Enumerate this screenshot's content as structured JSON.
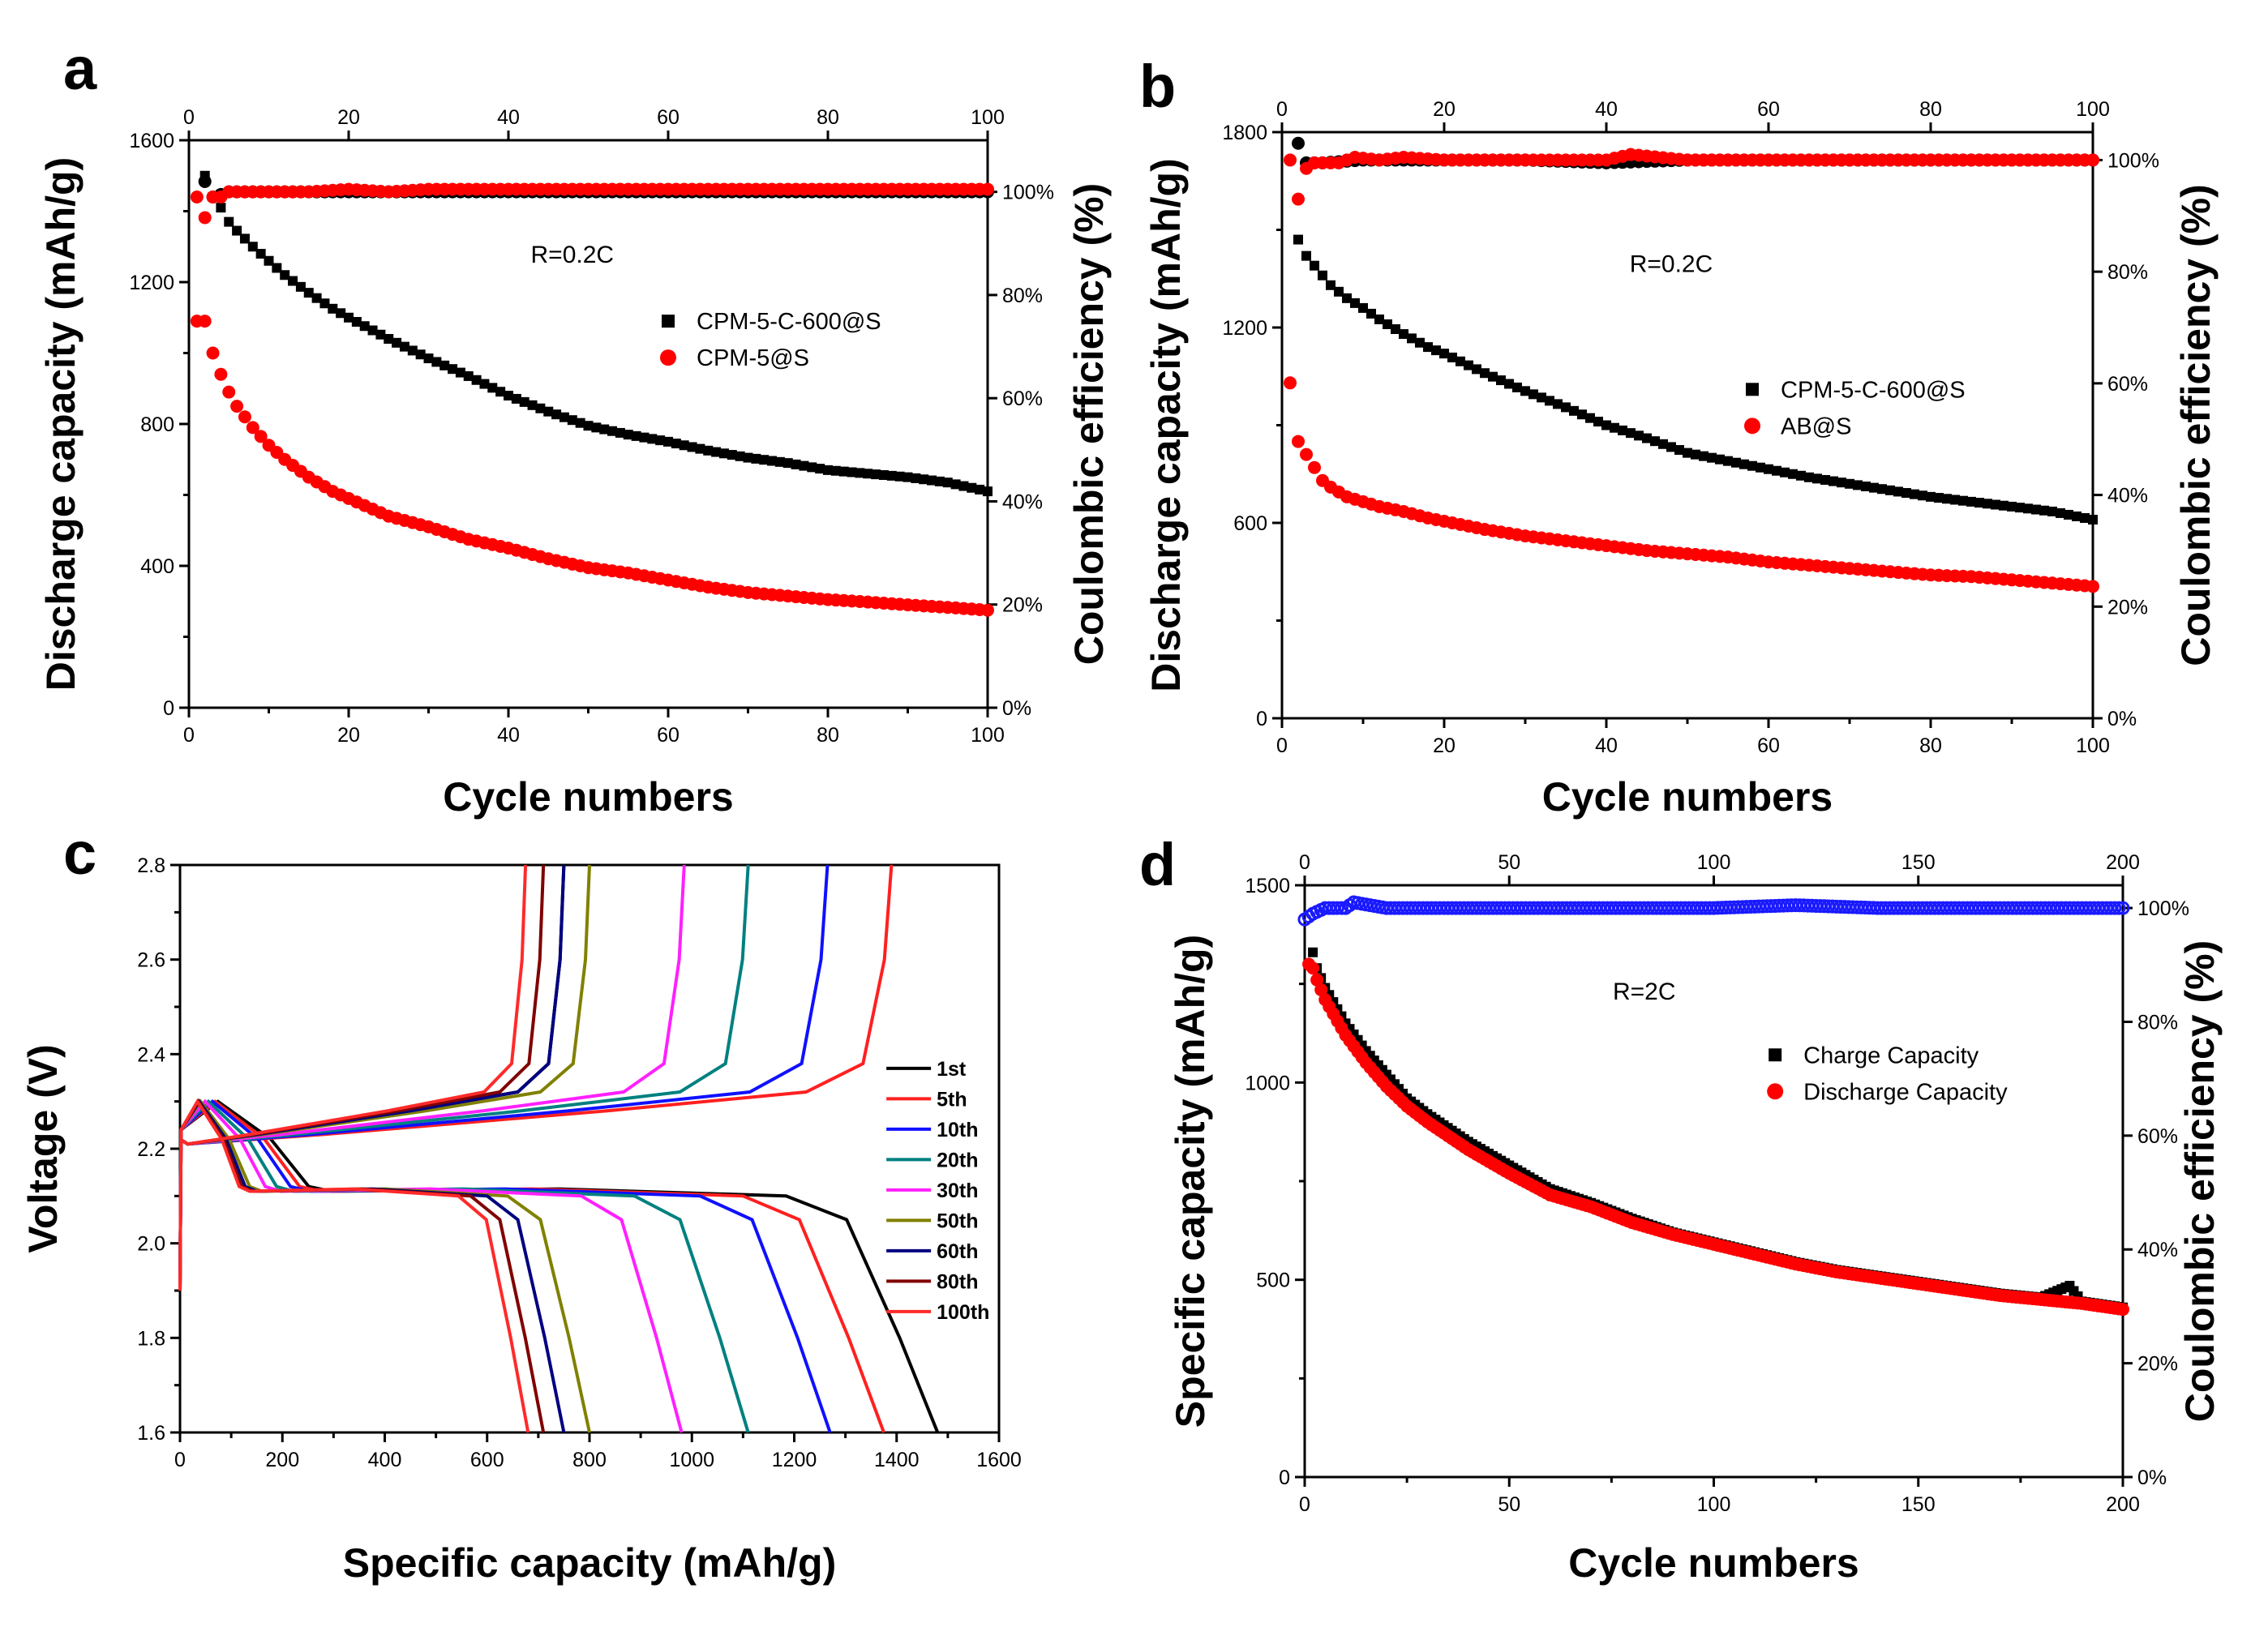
{
  "chart_data": [
    {
      "panel": "a",
      "type": "scatter",
      "xlabel": "Cycle numbers",
      "ylabel": "Discharge capacity (mAh/g)",
      "y2label": "Coulombic efficiency (%)",
      "xlim": [
        0,
        100
      ],
      "ylim": [
        0,
        1600
      ],
      "y2lim": [
        0,
        110
      ],
      "xticks": [
        "0",
        "20",
        "40",
        "60",
        "80",
        "100"
      ],
      "top_xticks": [
        "0",
        "20",
        "40",
        "60",
        "80",
        "100"
      ],
      "yticks": [
        "0",
        "400",
        "800",
        "1200",
        "1600"
      ],
      "y2ticks": [
        "0%",
        "20%",
        "40%",
        "60%",
        "80%",
        "100%"
      ],
      "annotation": "R=0.2C",
      "legend": [
        "CPM-5-C-600@S",
        "CPM-5@S"
      ],
      "series": [
        {
          "name": "CPM-5-C-600@S",
          "marker": "square",
          "color": "#000000",
          "x": [
            2,
            3,
            4,
            5,
            6,
            8,
            10,
            12,
            15,
            18,
            20,
            25,
            30,
            35,
            40,
            45,
            50,
            55,
            60,
            65,
            70,
            75,
            80,
            85,
            90,
            95,
            100
          ],
          "y": [
            1500,
            1440,
            1410,
            1370,
            1345,
            1300,
            1260,
            1220,
            1170,
            1125,
            1100,
            1040,
            985,
            935,
            880,
            835,
            795,
            770,
            750,
            725,
            705,
            690,
            670,
            660,
            650,
            635,
            610
          ]
        },
        {
          "name": "CPM-5@S",
          "marker": "circle",
          "color": "#ff0000",
          "x": [
            1,
            2,
            3,
            4,
            5,
            6,
            8,
            10,
            12,
            15,
            18,
            20,
            25,
            30,
            35,
            40,
            45,
            50,
            55,
            60,
            65,
            70,
            75,
            80,
            85,
            90,
            95,
            100
          ],
          "y": [
            1090,
            1090,
            1000,
            940,
            890,
            850,
            790,
            740,
            700,
            650,
            610,
            590,
            540,
            510,
            475,
            450,
            420,
            395,
            380,
            360,
            340,
            325,
            315,
            305,
            298,
            290,
            283,
            275
          ]
        },
        {
          "name": "CPM-5-C-600@S CE",
          "axis": "y2",
          "marker": "circle",
          "color": "#000000",
          "x": [
            2,
            3,
            5,
            10,
            20,
            30,
            40,
            50,
            60,
            70,
            80,
            90,
            100
          ],
          "y": [
            102,
            99,
            100,
            100,
            100,
            100,
            100,
            100,
            100,
            100,
            100,
            100,
            100
          ]
        },
        {
          "name": "CPM-5@S CE",
          "axis": "y2",
          "marker": "circle",
          "color": "#ff0000",
          "x": [
            1,
            2,
            3,
            4,
            5,
            7,
            10,
            15,
            20,
            25,
            30,
            40,
            50,
            60,
            70,
            80,
            90,
            100
          ],
          "y": [
            99,
            95,
            99,
            99,
            100,
            100,
            100,
            100,
            100.5,
            100,
            100.5,
            100.5,
            100.5,
            100.5,
            100.5,
            100.5,
            100.5,
            100.5
          ]
        }
      ]
    },
    {
      "panel": "b",
      "type": "scatter",
      "xlabel": "Cycle numbers",
      "ylabel": "Discharge capacity (mAh/g)",
      "y2label": "Coulombic efficiency (%)",
      "xlim": [
        0,
        100
      ],
      "ylim": [
        0,
        1800
      ],
      "y2lim": [
        0,
        105
      ],
      "xticks": [
        "0",
        "20",
        "40",
        "60",
        "80",
        "100"
      ],
      "top_xticks": [
        "0",
        "20",
        "40",
        "60",
        "80",
        "100"
      ],
      "yticks": [
        "0",
        "600",
        "1200",
        "1800"
      ],
      "y2ticks": [
        "0%",
        "20%",
        "40%",
        "60%",
        "80%",
        "100%"
      ],
      "annotation": "R=0.2C",
      "legend": [
        "CPM-5-C-600@S",
        "AB@S"
      ],
      "series": [
        {
          "name": "CPM-5-C-600@S",
          "marker": "square",
          "color": "#000000",
          "x": [
            2,
            3,
            4,
            5,
            6,
            8,
            10,
            12,
            15,
            18,
            20,
            25,
            30,
            35,
            40,
            45,
            50,
            55,
            60,
            65,
            70,
            75,
            80,
            85,
            90,
            95,
            100
          ],
          "y": [
            1470,
            1420,
            1390,
            1360,
            1330,
            1290,
            1260,
            1225,
            1180,
            1140,
            1120,
            1060,
            1005,
            955,
            900,
            860,
            815,
            790,
            765,
            740,
            720,
            700,
            680,
            665,
            650,
            635,
            610
          ]
        },
        {
          "name": "AB@S",
          "marker": "circle",
          "color": "#ff0000",
          "x": [
            1,
            2,
            3,
            4,
            5,
            6,
            8,
            10,
            12,
            15,
            18,
            20,
            25,
            30,
            35,
            40,
            45,
            50,
            55,
            60,
            65,
            70,
            75,
            80,
            85,
            90,
            95,
            100
          ],
          "y": [
            1030,
            850,
            810,
            770,
            730,
            710,
            680,
            665,
            650,
            635,
            615,
            605,
            580,
            560,
            545,
            530,
            515,
            505,
            495,
            480,
            470,
            460,
            450,
            440,
            435,
            425,
            415,
            405
          ]
        },
        {
          "name": "CPM-5-C-600@S CE",
          "axis": "y2",
          "marker": "circle",
          "color": "#000000",
          "x": [
            2,
            3,
            5,
            10,
            20,
            30,
            40,
            50,
            60,
            70,
            80,
            90,
            100
          ],
          "y": [
            103,
            99.5,
            99.5,
            100,
            100,
            100,
            99.5,
            100,
            100,
            100,
            100,
            100,
            100
          ]
        },
        {
          "name": "AB@S CE",
          "axis": "y2",
          "marker": "circle",
          "color": "#ff0000",
          "x": [
            1,
            2,
            3,
            4,
            5,
            7,
            9,
            12,
            15,
            20,
            30,
            40,
            43,
            50,
            60,
            70,
            80,
            90,
            100
          ],
          "y": [
            100,
            93,
            98.5,
            99.5,
            99.5,
            99.5,
            100.5,
            100,
            100.5,
            100,
            100,
            100,
            101,
            100,
            100,
            100,
            100,
            100,
            100
          ]
        }
      ]
    },
    {
      "panel": "c",
      "type": "line",
      "xlabel": "Specific capacity (mAh/g)",
      "ylabel": "Voltage (V)",
      "xlim": [
        0,
        1600
      ],
      "ylim": [
        1.6,
        2.8
      ],
      "xticks": [
        "0",
        "200",
        "400",
        "600",
        "800",
        "1000",
        "1200",
        "1400",
        "1600"
      ],
      "yticks": [
        "1.6",
        "1.8",
        "2.0",
        "2.2",
        "2.4",
        "2.6",
        "2.8"
      ],
      "legend": [
        "1st",
        "5th",
        "10th",
        "20th",
        "30th",
        "50th",
        "60th",
        "80th",
        "100th"
      ],
      "series": [
        {
          "name": "1st",
          "color": "#000000",
          "discharge_end": 1480,
          "charge_end": 750
        },
        {
          "name": "5th",
          "color": "#ff2020",
          "discharge_end": 1375,
          "charge_end": 1390
        },
        {
          "name": "10th",
          "color": "#1010ff",
          "discharge_end": 1270,
          "charge_end": 1265
        },
        {
          "name": "20th",
          "color": "#008080",
          "discharge_end": 1110,
          "charge_end": 1110
        },
        {
          "name": "30th",
          "color": "#ff20ff",
          "discharge_end": 980,
          "charge_end": 985
        },
        {
          "name": "50th",
          "color": "#808000",
          "discharge_end": 800,
          "charge_end": 800
        },
        {
          "name": "60th",
          "color": "#000080",
          "discharge_end": 750,
          "charge_end": 750
        },
        {
          "name": "80th",
          "color": "#800000",
          "discharge_end": 710,
          "charge_end": 710
        },
        {
          "name": "100th",
          "color": "#ff2a2a",
          "discharge_end": 680,
          "charge_end": 675
        }
      ]
    },
    {
      "panel": "d",
      "type": "scatter",
      "xlabel": "Cycle numbers",
      "ylabel": "Specific capacity (mAh/g)",
      "y2label": "Coulombic efficiency (%)",
      "xlim": [
        0,
        200
      ],
      "ylim": [
        0,
        1500
      ],
      "y2lim": [
        0,
        104
      ],
      "xticks": [
        "0",
        "50",
        "100",
        "150",
        "200"
      ],
      "top_xticks": [
        "0",
        "50",
        "100",
        "150",
        "200"
      ],
      "yticks": [
        "0",
        "500",
        "1000",
        "1500"
      ],
      "y2ticks": [
        "0%",
        "20%",
        "40%",
        "60%",
        "80%",
        "100%"
      ],
      "annotation": "R=2C",
      "legend": [
        "Charge Capacity",
        "Discharge Capacity"
      ],
      "series": [
        {
          "name": "Charge Capacity",
          "marker": "square",
          "color": "#000000",
          "x": [
            2,
            3,
            5,
            10,
            15,
            20,
            25,
            30,
            40,
            50,
            60,
            70,
            80,
            90,
            100,
            110,
            120,
            130,
            140,
            150,
            160,
            170,
            180,
            187,
            190,
            200
          ],
          "y": [
            1330,
            1290,
            1240,
            1150,
            1080,
            1020,
            960,
            920,
            850,
            790,
            730,
            695,
            655,
            620,
            595,
            570,
            545,
            525,
            510,
            495,
            480,
            465,
            455,
            485,
            445,
            430
          ]
        },
        {
          "name": "Discharge Capacity",
          "marker": "circle",
          "color": "#ff0000",
          "x": [
            1,
            2,
            3,
            5,
            10,
            15,
            20,
            25,
            30,
            40,
            50,
            60,
            70,
            80,
            90,
            100,
            110,
            120,
            130,
            140,
            150,
            160,
            170,
            180,
            190,
            200
          ],
          "y": [
            1300,
            1290,
            1260,
            1210,
            1120,
            1050,
            990,
            940,
            900,
            830,
            770,
            715,
            685,
            645,
            615,
            590,
            565,
            540,
            520,
            505,
            490,
            475,
            460,
            450,
            440,
            425
          ]
        },
        {
          "name": "Coulombic efficiency",
          "axis": "y2",
          "marker": "circle",
          "color": "#1a1aff",
          "x": [
            0,
            2,
            5,
            10,
            12,
            20,
            40,
            60,
            80,
            100,
            120,
            140,
            160,
            180,
            200
          ],
          "y": [
            98,
            99,
            100,
            100,
            101,
            100,
            100,
            100,
            100,
            100,
            100.5,
            100,
            100,
            100,
            100
          ]
        }
      ]
    }
  ],
  "panel_labels": [
    "a",
    "b",
    "c",
    "d"
  ]
}
